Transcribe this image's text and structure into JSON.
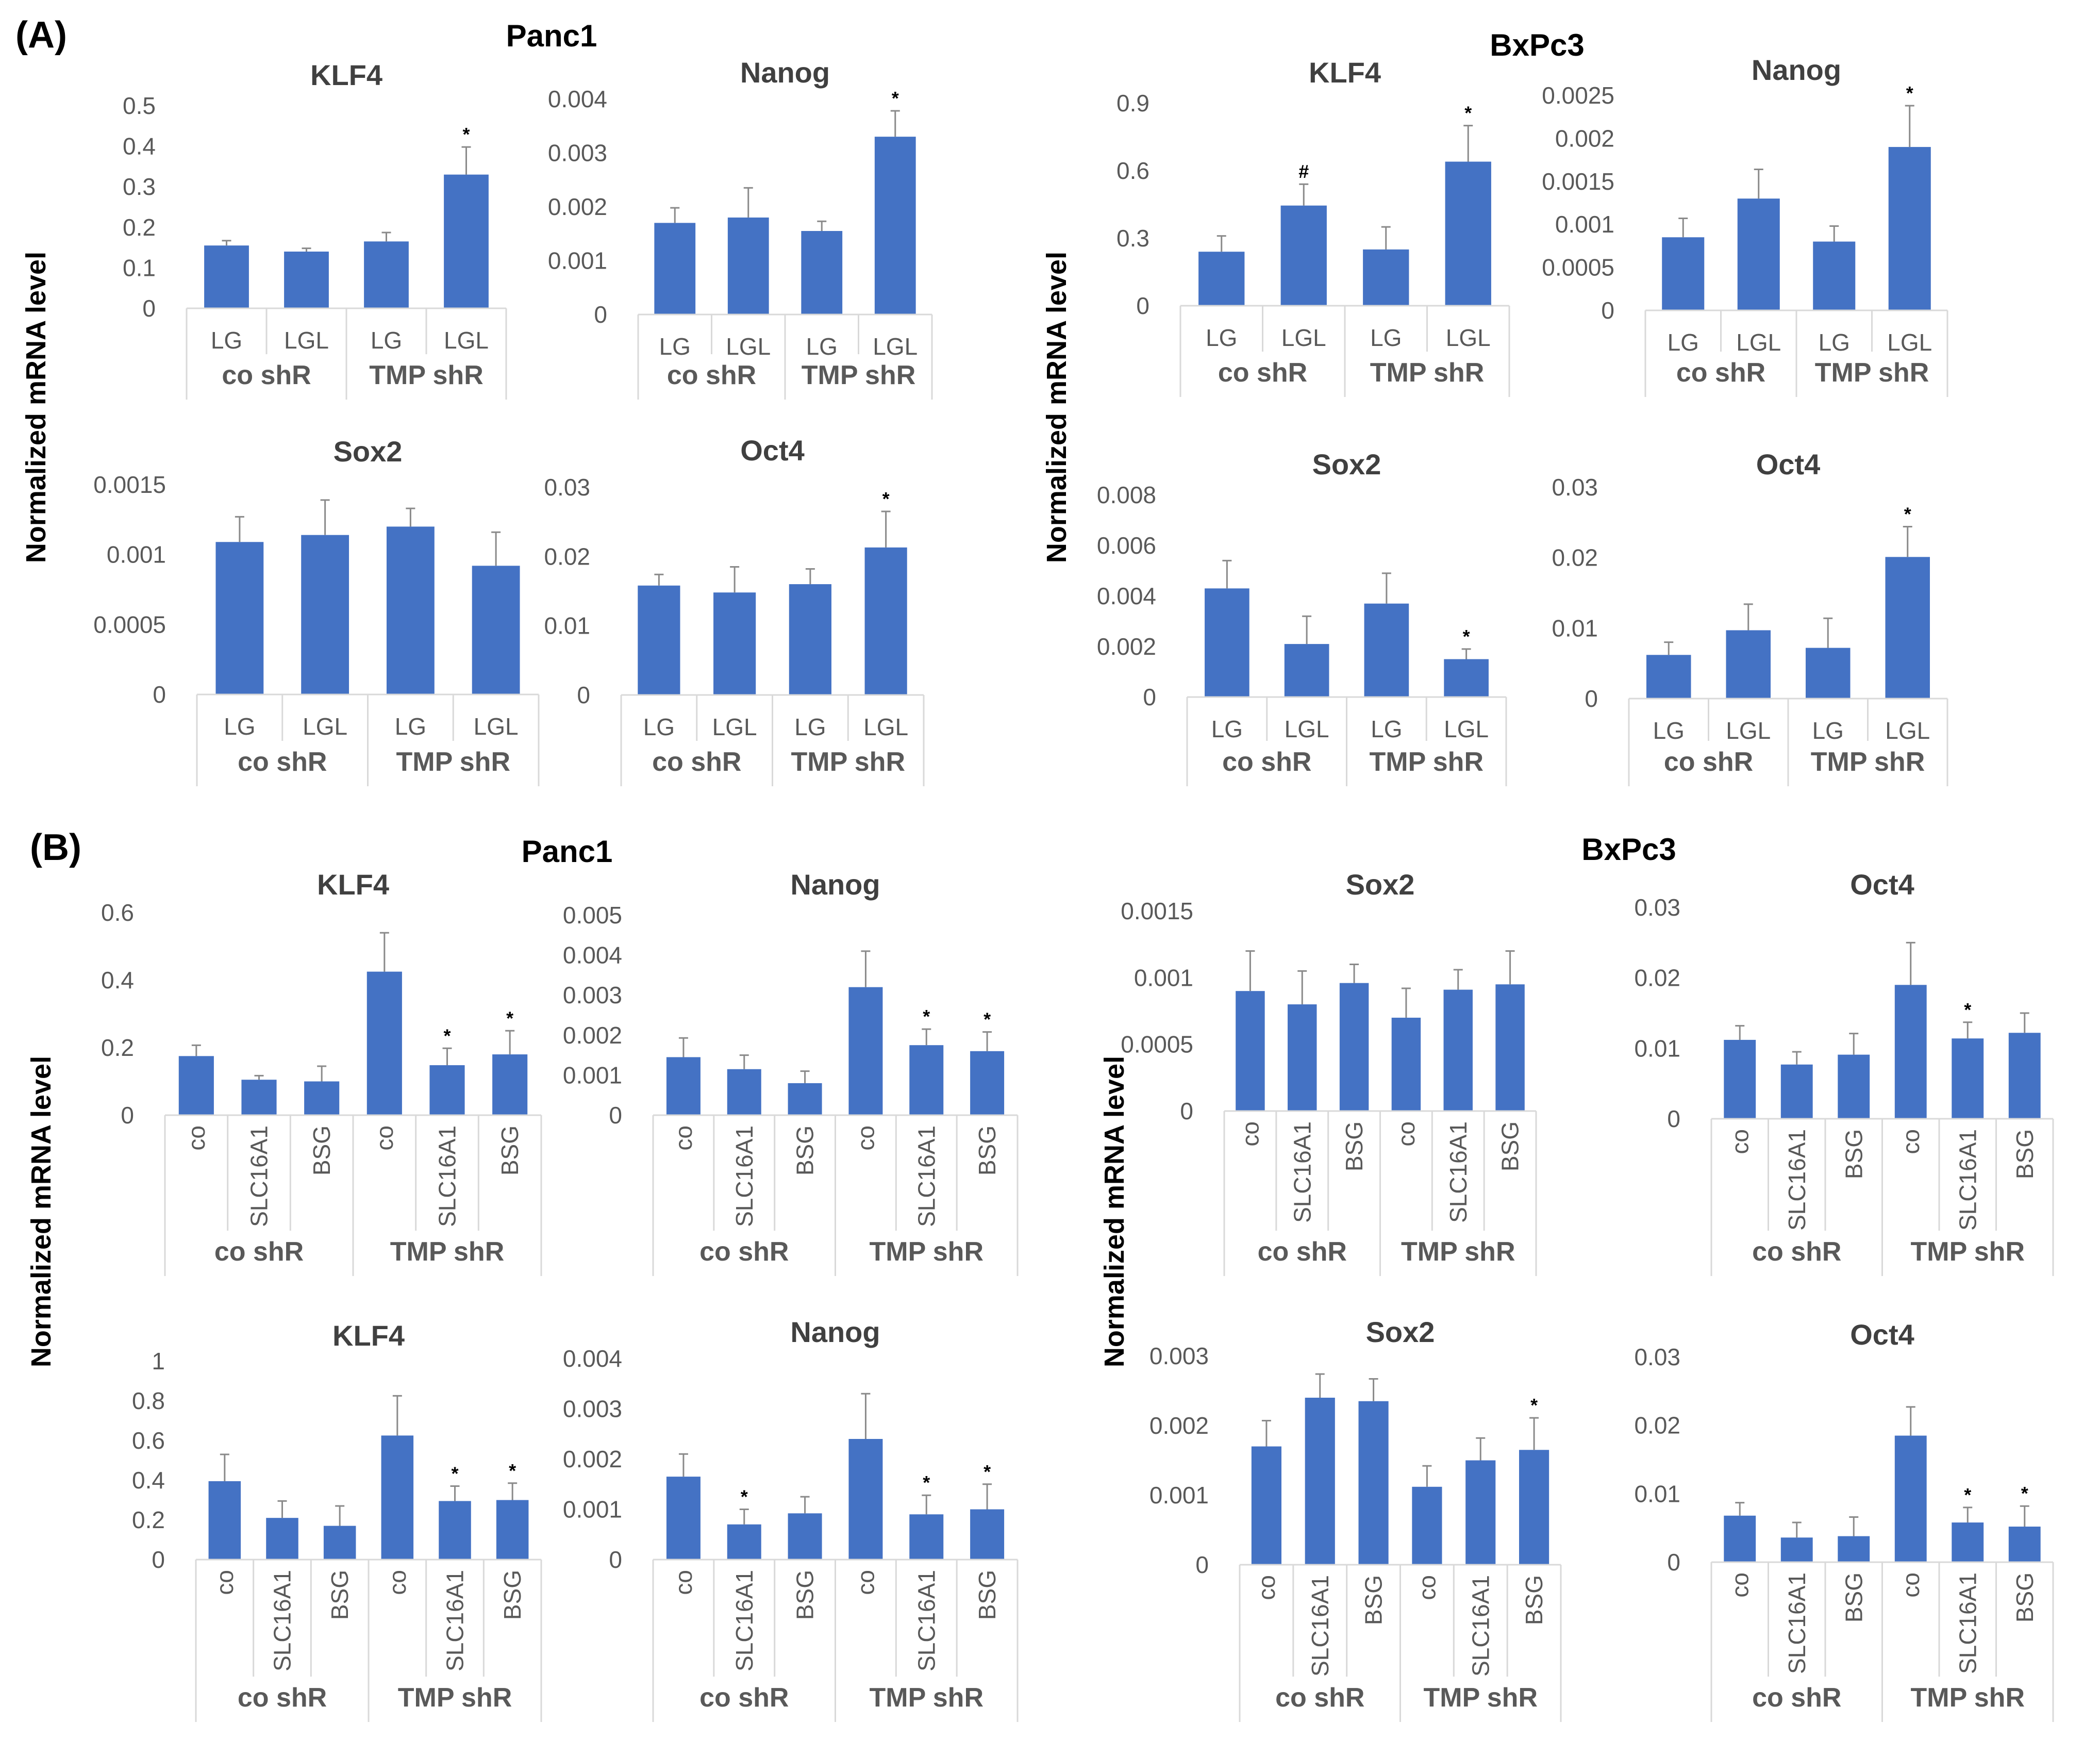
{
  "panel_labels": {
    "A": "(A)",
    "B": "(B)"
  },
  "cell_lines": {
    "A_left": "Panc1",
    "A_right": "BxPc3",
    "B_left": "Panc1",
    "B_right": "BxPc3"
  },
  "ylabel": "Normalized mRNA level",
  "colors": {
    "bar": "#4472c4",
    "axis": "#d9d9d9",
    "text": "#595959",
    "title": "#404040",
    "bold": "#000000"
  },
  "chart_data": [
    {
      "id": "A-Panc1-KLF4",
      "type": "bar",
      "title": "KLF4",
      "ylim": [
        0,
        0.5
      ],
      "yticks": [
        "0",
        "0.1",
        "0.2",
        "0.3",
        "0.4",
        "0.5"
      ],
      "categories": [
        "LG",
        "LGL",
        "LG",
        "LGL"
      ],
      "groups": [
        "co shR",
        "TMP shR"
      ],
      "values": [
        0.155,
        0.14,
        0.165,
        0.33
      ],
      "errors": [
        0.012,
        0.008,
        0.022,
        0.068
      ],
      "marks": [
        "",
        "",
        "",
        "*"
      ]
    },
    {
      "id": "A-Panc1-Nanog",
      "type": "bar",
      "title": "Nanog",
      "ylim": [
        0,
        0.004
      ],
      "yticks": [
        "0",
        "0.001",
        "0.002",
        "0.003",
        "0.004"
      ],
      "categories": [
        "LG",
        "LGL",
        "LG",
        "LGL"
      ],
      "groups": [
        "co shR",
        "TMP shR"
      ],
      "values": [
        0.0017,
        0.0018,
        0.00155,
        0.0033
      ],
      "errors": [
        0.00028,
        0.00055,
        0.00018,
        0.00048
      ],
      "marks": [
        "",
        "",
        "",
        "*"
      ]
    },
    {
      "id": "A-Panc1-Sox2",
      "type": "bar",
      "title": "Sox2",
      "ylim": [
        0,
        0.0015
      ],
      "yticks": [
        "0",
        "0.0005",
        "0.001",
        "0.0015"
      ],
      "categories": [
        "LG",
        "LGL",
        "LG",
        "LGL"
      ],
      "groups": [
        "co shR",
        "TMP shR"
      ],
      "values": [
        0.00109,
        0.00114,
        0.0012,
        0.00092
      ],
      "errors": [
        0.00018,
        0.00025,
        0.00013,
        0.00024
      ],
      "marks": [
        "",
        "",
        "",
        ""
      ]
    },
    {
      "id": "A-Panc1-Oct4",
      "type": "bar",
      "title": "Oct4",
      "ylim": [
        0,
        0.03
      ],
      "yticks": [
        "0",
        "0.01",
        "0.02",
        "0.03"
      ],
      "categories": [
        "LG",
        "LGL",
        "LG",
        "LGL"
      ],
      "groups": [
        "co shR",
        "TMP shR"
      ],
      "values": [
        0.0158,
        0.0148,
        0.016,
        0.0213
      ],
      "errors": [
        0.0016,
        0.0037,
        0.0022,
        0.0052
      ],
      "marks": [
        "",
        "",
        "",
        "*"
      ]
    },
    {
      "id": "A-BxPc3-KLF4",
      "type": "bar",
      "title": "KLF4",
      "ylim": [
        0,
        0.9
      ],
      "yticks": [
        "0",
        "0.3",
        "0.6",
        "0.9"
      ],
      "categories": [
        "LG",
        "LGL",
        "LG",
        "LGL"
      ],
      "groups": [
        "co shR",
        "TMP shR"
      ],
      "values": [
        0.24,
        0.445,
        0.25,
        0.64
      ],
      "errors": [
        0.07,
        0.095,
        0.1,
        0.16
      ],
      "marks": [
        "",
        "#",
        "",
        "*"
      ]
    },
    {
      "id": "A-BxPc3-Nanog",
      "type": "bar",
      "title": "Nanog",
      "ylim": [
        0,
        0.0025
      ],
      "yticks": [
        "0",
        "0.0005",
        "0.001",
        "0.0015",
        "0.002",
        "0.0025"
      ],
      "categories": [
        "LG",
        "LGL",
        "LG",
        "LGL"
      ],
      "groups": [
        "co shR",
        "TMP shR"
      ],
      "values": [
        0.00085,
        0.0013,
        0.0008,
        0.0019
      ],
      "errors": [
        0.00022,
        0.00034,
        0.00018,
        0.00048
      ],
      "marks": [
        "",
        "",
        "",
        "*"
      ]
    },
    {
      "id": "A-BxPc3-Sox2",
      "type": "bar",
      "title": "Sox2",
      "ylim": [
        0,
        0.008
      ],
      "yticks": [
        "0",
        "0.002",
        "0.004",
        "0.006",
        "0.008"
      ],
      "categories": [
        "LG",
        "LGL",
        "LG",
        "LGL"
      ],
      "groups": [
        "co shR",
        "TMP shR"
      ],
      "values": [
        0.0043,
        0.0021,
        0.0037,
        0.0015
      ],
      "errors": [
        0.0011,
        0.0011,
        0.0012,
        0.0004
      ],
      "marks": [
        "",
        "",
        "",
        "*"
      ]
    },
    {
      "id": "A-BxPc3-Oct4",
      "type": "bar",
      "title": "Oct4",
      "ylim": [
        0,
        0.03
      ],
      "yticks": [
        "0",
        "0.01",
        "0.02",
        "0.03"
      ],
      "categories": [
        "LG",
        "LGL",
        "LG",
        "LGL"
      ],
      "groups": [
        "co shR",
        "TMP shR"
      ],
      "values": [
        0.0062,
        0.0097,
        0.0072,
        0.0201
      ],
      "errors": [
        0.0018,
        0.0037,
        0.0042,
        0.0043
      ],
      "marks": [
        "",
        "",
        "",
        "*"
      ]
    },
    {
      "id": "B-Panc1-KLF4",
      "type": "bar",
      "title": "KLF4",
      "ylim": [
        0,
        0.6
      ],
      "yticks": [
        "0",
        "0.2",
        "0.4",
        "0.6"
      ],
      "categories": [
        "co",
        "SLC16A1",
        "BSG",
        "co",
        "SLC16A1",
        "BSG"
      ],
      "groups": [
        "co shR",
        "TMP shR"
      ],
      "values": [
        0.175,
        0.105,
        0.1,
        0.425,
        0.148,
        0.18
      ],
      "errors": [
        0.032,
        0.012,
        0.045,
        0.115,
        0.05,
        0.07
      ],
      "marks": [
        "",
        "",
        "",
        "",
        "*",
        "*"
      ]
    },
    {
      "id": "B-Panc1-Nanog",
      "type": "bar",
      "title": "Nanog",
      "ylim": [
        0,
        0.005
      ],
      "yticks": [
        "0",
        "0.001",
        "0.002",
        "0.003",
        "0.004",
        "0.005"
      ],
      "categories": [
        "co",
        "SLC16A1",
        "BSG",
        "co",
        "SLC16A1",
        "BSG"
      ],
      "groups": [
        "co shR",
        "TMP shR"
      ],
      "values": [
        0.00145,
        0.00115,
        0.0008,
        0.0032,
        0.00175,
        0.0016
      ],
      "errors": [
        0.00048,
        0.00035,
        0.0003,
        0.0009,
        0.0004,
        0.00048
      ],
      "marks": [
        "",
        "",
        "",
        "",
        "*",
        "*"
      ]
    },
    {
      "id": "B-Panc1-Sox2",
      "type": "bar",
      "title": "Sox2",
      "ylim": [
        0,
        0.0015
      ],
      "yticks": [
        "0",
        "0.0005",
        "0.001",
        "0.0015"
      ],
      "categories": [
        "co",
        "SLC16A1",
        "BSG",
        "co",
        "SLC16A1",
        "BSG"
      ],
      "groups": [
        "co shR",
        "TMP shR"
      ],
      "values": [
        0.0009,
        0.0008,
        0.00096,
        0.0007,
        0.00091,
        0.00095
      ],
      "errors": [
        0.0003,
        0.00025,
        0.00014,
        0.00022,
        0.00015,
        0.00025
      ],
      "marks": [
        "",
        "",
        "",
        "",
        "",
        ""
      ]
    },
    {
      "id": "B-Panc1-Oct4",
      "type": "bar",
      "title": "Oct4",
      "ylim": [
        0,
        0.03
      ],
      "yticks": [
        "0",
        "0.01",
        "0.02",
        "0.03"
      ],
      "categories": [
        "co",
        "SLC16A1",
        "BSG",
        "co",
        "SLC16A1",
        "BSG"
      ],
      "groups": [
        "co shR",
        "TMP shR"
      ],
      "values": [
        0.0112,
        0.0077,
        0.0091,
        0.019,
        0.0114,
        0.0122
      ],
      "errors": [
        0.002,
        0.0018,
        0.003,
        0.006,
        0.0023,
        0.0028
      ],
      "marks": [
        "",
        "",
        "",
        "",
        "*",
        ""
      ]
    },
    {
      "id": "B-BxPc3-KLF4",
      "type": "bar",
      "title": "KLF4",
      "ylim": [
        0,
        1
      ],
      "yticks": [
        "0",
        "0.2",
        "0.4",
        "0.6",
        "0.8",
        "1"
      ],
      "categories": [
        "co",
        "SLC16A1",
        "BSG",
        "co",
        "SLC16A1",
        "BSG"
      ],
      "groups": [
        "co shR",
        "TMP shR"
      ],
      "values": [
        0.395,
        0.21,
        0.17,
        0.625,
        0.295,
        0.3
      ],
      "errors": [
        0.135,
        0.085,
        0.1,
        0.2,
        0.075,
        0.085
      ],
      "marks": [
        "",
        "",
        "",
        "",
        "*",
        "*"
      ]
    },
    {
      "id": "B-BxPc3-Nanog",
      "type": "bar",
      "title": "Nanog",
      "ylim": [
        0,
        0.004
      ],
      "yticks": [
        "0",
        "0.001",
        "0.002",
        "0.003",
        "0.004"
      ],
      "categories": [
        "co",
        "SLC16A1",
        "BSG",
        "co",
        "SLC16A1",
        "BSG"
      ],
      "groups": [
        "co shR",
        "TMP shR"
      ],
      "values": [
        0.00165,
        0.0007,
        0.00092,
        0.0024,
        0.0009,
        0.001
      ],
      "errors": [
        0.00045,
        0.0003,
        0.00033,
        0.0009,
        0.00038,
        0.0005
      ],
      "marks": [
        "",
        "*",
        "",
        "",
        "*",
        "*"
      ]
    },
    {
      "id": "B-BxPc3-Sox2",
      "type": "bar",
      "title": "Sox2",
      "ylim": [
        0,
        0.003
      ],
      "yticks": [
        "0",
        "0.001",
        "0.002",
        "0.003"
      ],
      "categories": [
        "co",
        "SLC16A1",
        "BSG",
        "co",
        "SLC16A1",
        "BSG"
      ],
      "groups": [
        "co shR",
        "TMP shR"
      ],
      "values": [
        0.0017,
        0.0024,
        0.00235,
        0.00112,
        0.0015,
        0.00165
      ],
      "errors": [
        0.00037,
        0.00034,
        0.00032,
        0.0003,
        0.00032,
        0.00046
      ],
      "marks": [
        "",
        "",
        "",
        "",
        "",
        "*"
      ]
    },
    {
      "id": "B-BxPc3-Oct4",
      "type": "bar",
      "title": "Oct4",
      "ylim": [
        0,
        0.03
      ],
      "yticks": [
        "0",
        "0.01",
        "0.02",
        "0.03"
      ],
      "categories": [
        "co",
        "SLC16A1",
        "BSG",
        "co",
        "SLC16A1",
        "BSG"
      ],
      "groups": [
        "co shR",
        "TMP shR"
      ],
      "values": [
        0.0068,
        0.0036,
        0.0038,
        0.0185,
        0.0058,
        0.0052
      ],
      "errors": [
        0.0019,
        0.0022,
        0.0028,
        0.0042,
        0.0022,
        0.003
      ],
      "marks": [
        "",
        "",
        "",
        "",
        "*",
        "*"
      ]
    }
  ]
}
